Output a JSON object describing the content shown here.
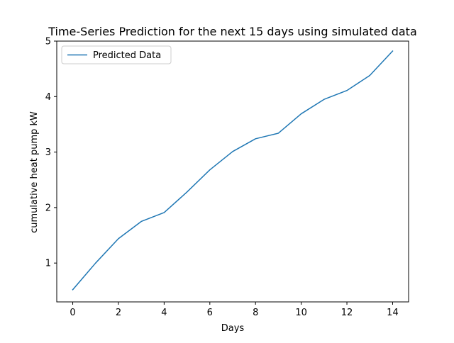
{
  "chart_data": {
    "type": "line",
    "title": "Time-Series Prediction for the next 15 days using simulated data",
    "xlabel": "Days",
    "ylabel": "cumulative heat pump kW",
    "xlim": [
      -0.7,
      14.7
    ],
    "ylim": [
      0.3,
      5.0
    ],
    "x_ticks": [
      0,
      2,
      4,
      6,
      8,
      10,
      12,
      14
    ],
    "y_ticks": [
      1,
      2,
      3,
      4,
      5
    ],
    "grid": false,
    "legend_position": "top-left",
    "series": [
      {
        "name": "Predicted Data",
        "color": "#1f77b4",
        "x": [
          0,
          1,
          2,
          3,
          4,
          5,
          6,
          7,
          8,
          9,
          10,
          11,
          12,
          13,
          14
        ],
        "y": [
          0.52,
          1.0,
          1.44,
          1.75,
          1.91,
          2.28,
          2.68,
          3.01,
          3.24,
          3.34,
          3.69,
          3.95,
          4.11,
          4.38,
          4.82
        ]
      }
    ]
  }
}
